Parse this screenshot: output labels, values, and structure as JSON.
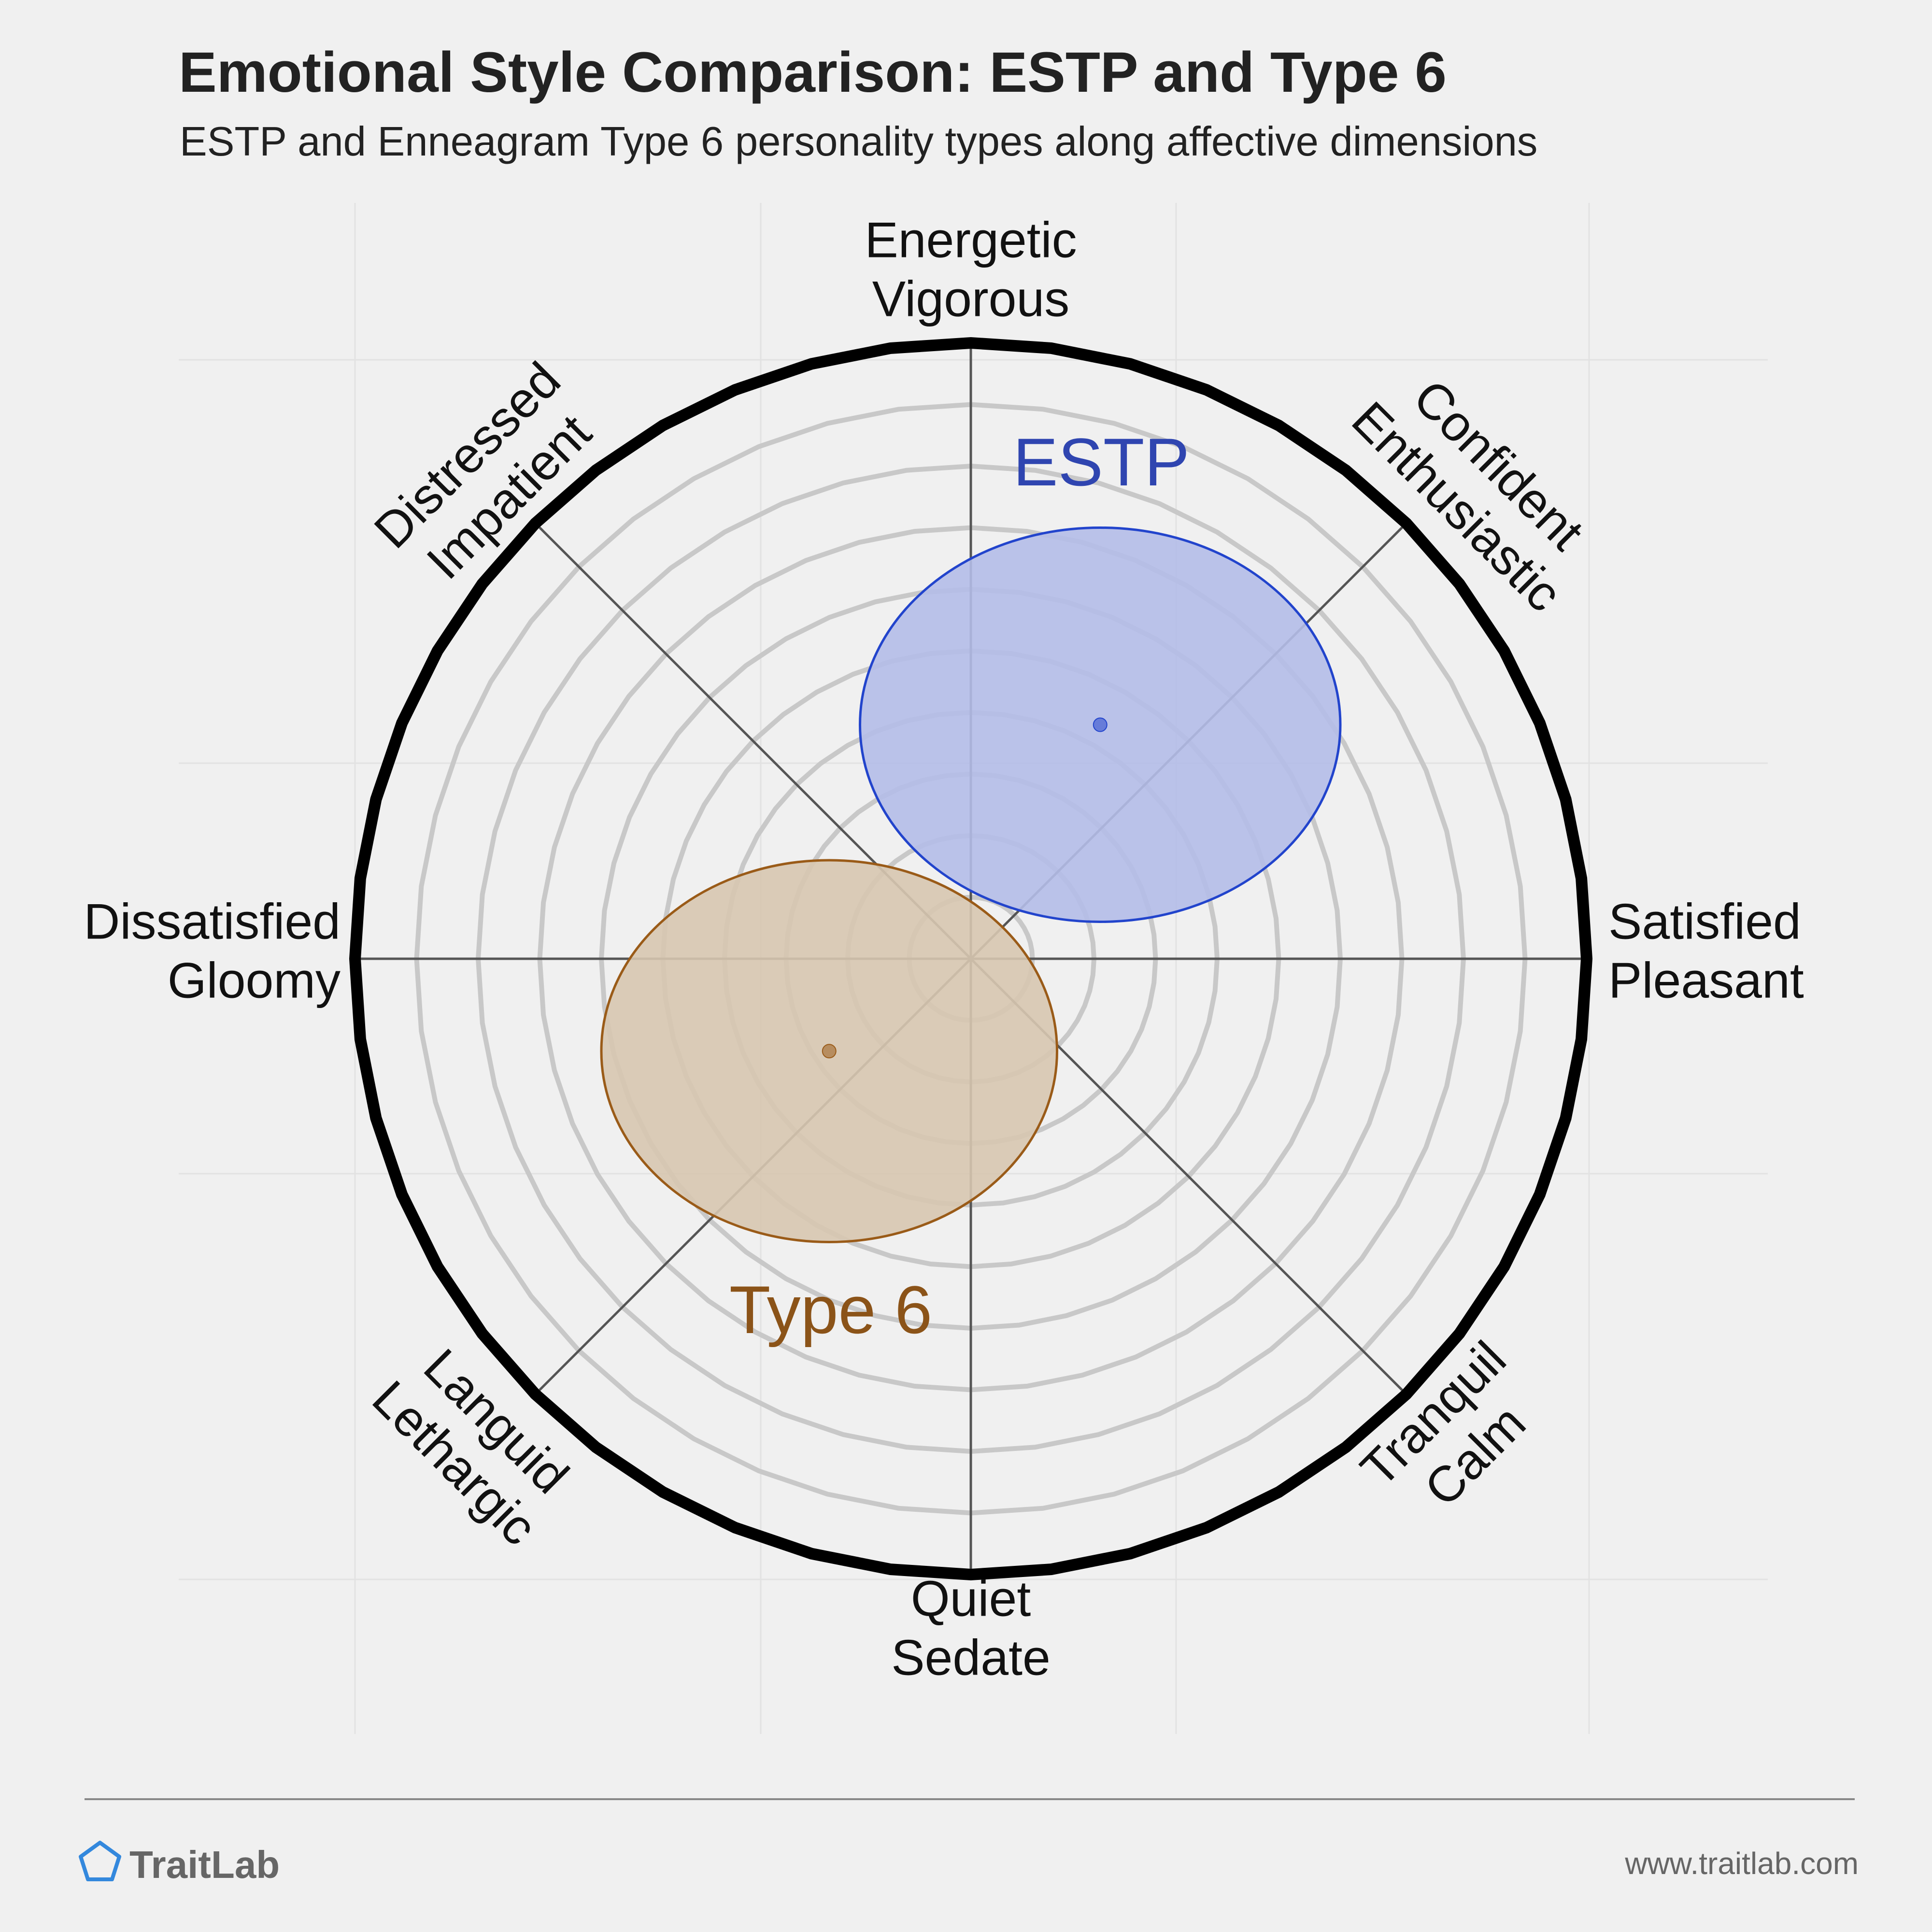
{
  "colors": {
    "background": "#f0f0f0",
    "estp_fill": "#b4bce8",
    "estp_stroke": "#2244cc",
    "estp_text": "#2f45b0",
    "type6_fill": "#d7c6b0",
    "type6_stroke": "#9a5b18",
    "type6_text": "#8b5318",
    "rim": "#000000",
    "rings": "#c8c8c8",
    "axes": "#555555",
    "logo": "#3388dd"
  },
  "header": {
    "title": "Emotional Style Comparison: ESTP and Type 6",
    "subtitle": "ESTP and Enneagram Type 6 personality types along affective dimensions"
  },
  "chart_data": {
    "type": "scatter",
    "title": "Emotional Style Comparison: ESTP and Type 6",
    "subtitle": "ESTP and Enneagram Type 6 personality types along affective dimensions",
    "xlabel": "",
    "ylabel": "",
    "xlim": [
      -1,
      1
    ],
    "ylim": [
      -1,
      1
    ],
    "ring_levels": [
      0.1,
      0.2,
      0.3,
      0.4,
      0.5,
      0.6,
      0.7,
      0.8,
      0.9
    ],
    "axis_labels": [
      {
        "id": "top",
        "lines": [
          "Energetic",
          "Vigorous"
        ]
      },
      {
        "id": "top-right",
        "lines": [
          "Confident",
          "Enthusiastic"
        ]
      },
      {
        "id": "right",
        "lines": [
          "Satisfied",
          "Pleasant"
        ]
      },
      {
        "id": "bottom-right",
        "lines": [
          "Tranquil",
          "Calm"
        ]
      },
      {
        "id": "bottom",
        "lines": [
          "Quiet",
          "Sedate"
        ]
      },
      {
        "id": "bottom-left",
        "lines": [
          "Languid",
          "Lethargic"
        ]
      },
      {
        "id": "left",
        "lines": [
          "Dissatisfied",
          "Gloomy"
        ]
      },
      {
        "id": "top-left",
        "lines": [
          "Distressed",
          "Impatient"
        ]
      }
    ],
    "series": [
      {
        "name": "ESTP",
        "x": 0.21,
        "y": 0.38,
        "rx": 0.39,
        "ry": 0.32,
        "color": "#2244cc"
      },
      {
        "name": "Type 6",
        "x": -0.23,
        "y": -0.15,
        "rx": 0.37,
        "ry": 0.31,
        "color": "#9a5b18"
      }
    ]
  },
  "footer": {
    "brand": "TraitLab",
    "url": "www.traitlab.com"
  }
}
